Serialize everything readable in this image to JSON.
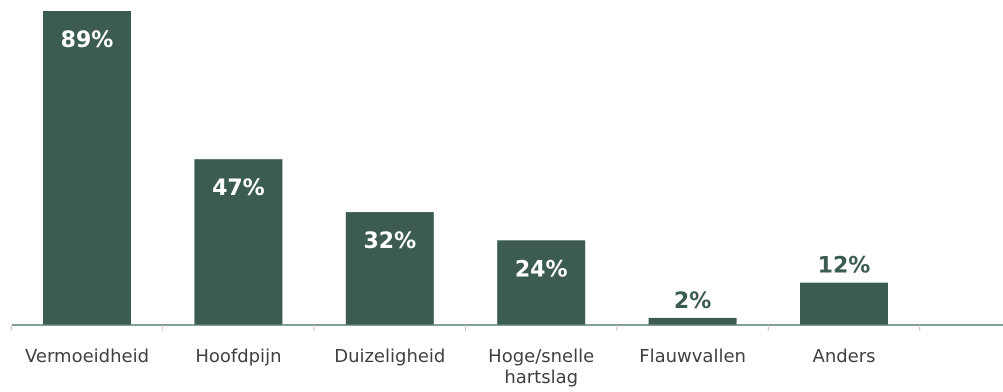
{
  "chart_data": {
    "type": "bar",
    "categories": [
      [
        "Vermoeidheid"
      ],
      [
        "Hoofdpijn"
      ],
      [
        "Duizeligheid"
      ],
      [
        "Hoge/snelle",
        "hartslag"
      ],
      [
        "Flauwvallen"
      ],
      [
        "Anders"
      ]
    ],
    "values": [
      89,
      47,
      32,
      24,
      2,
      12
    ],
    "data_labels": [
      "89%",
      "47%",
      "32%",
      "24%",
      "2%",
      "12%"
    ],
    "ylim": [
      0,
      89
    ],
    "bar_color": "#3b5b53",
    "axis_color": "#5f7f76",
    "legend": "none",
    "grid": false
  }
}
